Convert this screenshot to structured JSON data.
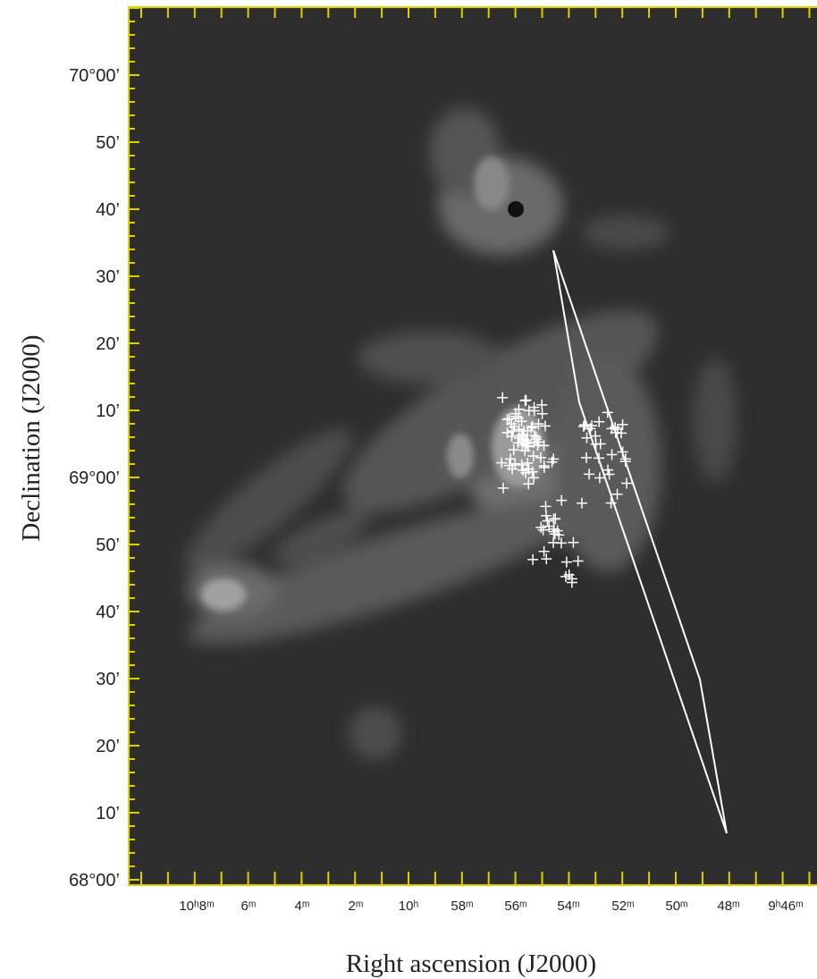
{
  "figure": {
    "y_axis_label": "Declination  (J2000)",
    "x_axis_label": "Right ascension (J2000)",
    "dec_ticks": [
      "70°00’",
      "50’",
      "40’",
      "30’",
      "20’",
      "10’",
      "69°00’",
      "50’",
      "40’",
      "30’",
      "20’",
      "10’",
      "68°00’"
    ],
    "ra_ticks": [
      "10ʰ8ᵐ",
      "6ᵐ",
      "4ᵐ",
      "2ᵐ",
      "10ʰ",
      "58ᵐ",
      "56ᵐ",
      "54ᵐ",
      "52ᵐ",
      "50ᵐ",
      "48ᵐ",
      "9ʰ46ᵐ"
    ]
  }
}
